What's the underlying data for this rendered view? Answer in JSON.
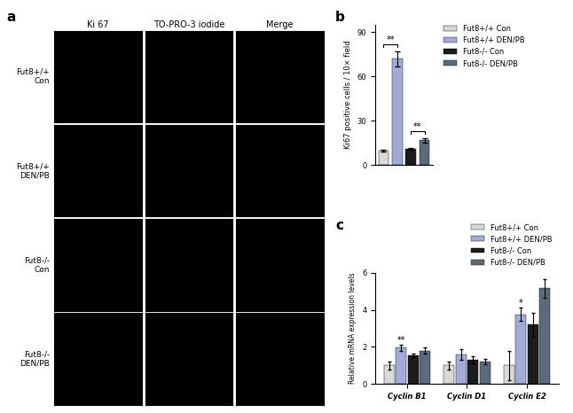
{
  "image_panel": {
    "panel": "a",
    "columns": [
      "Ki 67",
      "TO-PRO-3 iodide",
      "Merge"
    ],
    "rows": [
      "Fut8+/+\nCon",
      "Fut8+/+\nDEN/PB",
      "Fut8-/-\nCon",
      "Fut8-/-\nDEN/PB"
    ]
  },
  "chart_data": [
    {
      "type": "bar",
      "panel": "b",
      "ylabel": "Ki67 positive cells / 10× field",
      "categories": [
        null,
        null,
        null,
        null
      ],
      "series": [
        {
          "name": "Fut8+/+ Con",
          "color": "#d9d9d9",
          "values": [
            10,
            null,
            null,
            null
          ],
          "errors": [
            0.6,
            null,
            null,
            null
          ]
        },
        {
          "name": "Fut8+/+ DEN/PB",
          "color": "#a3acd8",
          "values": [
            null,
            72,
            null,
            null
          ],
          "errors": [
            null,
            5,
            null,
            null
          ]
        },
        {
          "name": "Fut8-/- Con",
          "color": "#1c1c1c",
          "values": [
            null,
            null,
            11,
            null
          ],
          "errors": [
            null,
            null,
            0.7,
            null
          ]
        },
        {
          "name": "Fut8-/- DEN/PB",
          "color": "#5b6b7b",
          "values": [
            null,
            null,
            null,
            17
          ],
          "errors": [
            null,
            null,
            null,
            1.5
          ]
        }
      ],
      "significance": [
        {
          "text": "**",
          "from": 0,
          "to": 1
        },
        {
          "text": "**",
          "from": 2,
          "to": 3
        }
      ],
      "ylim": [
        0,
        95
      ],
      "yticks": [
        0,
        30,
        60,
        90
      ],
      "tick_labels": "y",
      "legend": "upper left"
    },
    {
      "type": "bar",
      "panel": "c",
      "ylabel": "Relative mRNA expression levels",
      "categories": [
        "Cyclin B1",
        "Cyclin D1",
        "Cyclin E2"
      ],
      "series": [
        {
          "name": "Fut8+/+ Con",
          "color": "#d9d9d9",
          "values": [
            1.0,
            1.0,
            1.0
          ],
          "errors": [
            0.2,
            0.2,
            0.8
          ]
        },
        {
          "name": "Fut8+/+ DEN/PB",
          "color": "#a3acd8",
          "values": [
            1.95,
            1.6,
            3.75
          ],
          "errors": [
            0.15,
            0.3,
            0.35
          ]
        },
        {
          "name": "Fut8-/- Con",
          "color": "#1c1c1c",
          "values": [
            1.55,
            1.3,
            3.2
          ],
          "errors": [
            0.1,
            0.2,
            0.65
          ]
        },
        {
          "name": "Fut8-/- DEN/PB",
          "color": "#5b6b7b",
          "values": [
            1.8,
            1.2,
            5.15
          ],
          "errors": [
            0.15,
            0.15,
            0.5
          ]
        }
      ],
      "significance": [
        {
          "text": "**",
          "category": 0,
          "series": 1
        },
        {
          "text": "*",
          "category": 2,
          "series": 1
        }
      ],
      "ylim": [
        0,
        6
      ],
      "yticks": [
        0,
        2,
        4,
        6
      ],
      "legend": "upper right"
    }
  ]
}
